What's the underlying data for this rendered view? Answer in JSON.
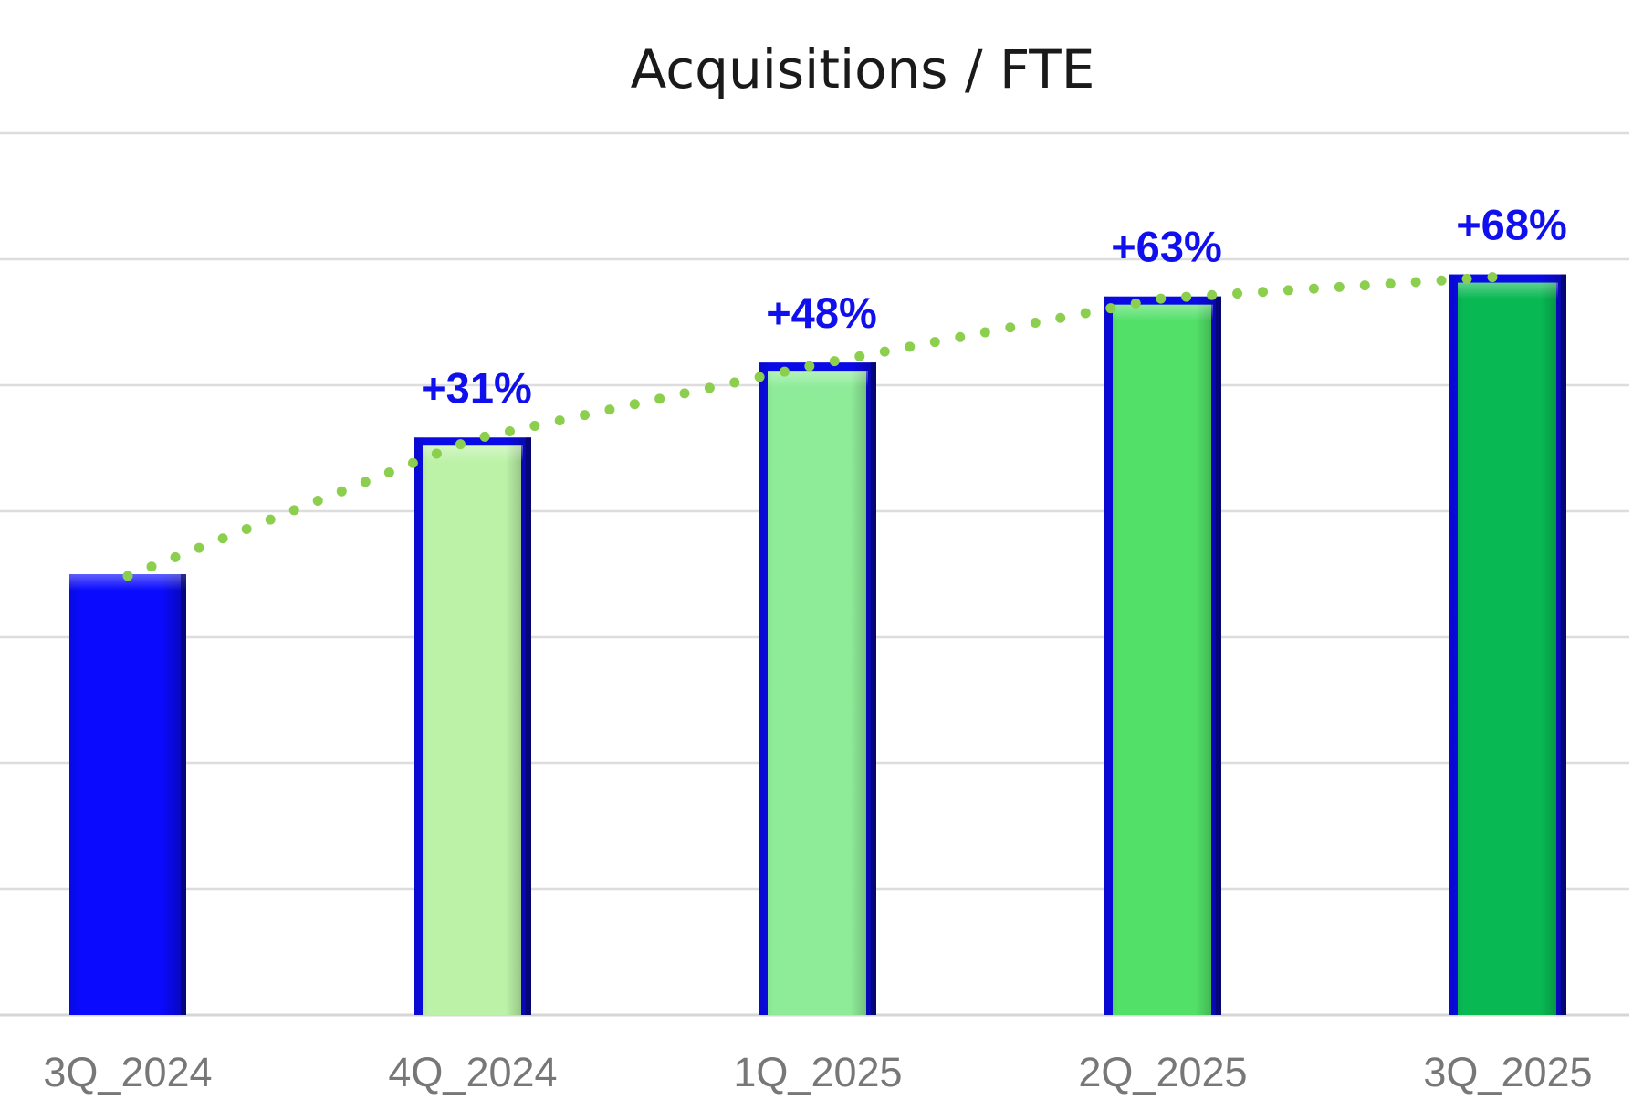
{
  "chart_data": {
    "type": "bar",
    "title": "Acquisitions / FTE",
    "xlabel": "",
    "ylabel": "",
    "categories": [
      "3Q_2024",
      "4Q_2024",
      "1Q_2025",
      "2Q_2025",
      "3Q_2025"
    ],
    "values": [
      100,
      131,
      148,
      163,
      168
    ],
    "value_labels": [
      "",
      "+31%",
      "+48%",
      "+63%",
      "+68%"
    ],
    "ylim": [
      0,
      200
    ],
    "grid": true,
    "trend_line": {
      "style": "dotted",
      "color": "#8ccf4e"
    },
    "colors": {
      "bar_fills": [
        "#0a0aff",
        "#bcf2a8",
        "#8eec98",
        "#52e068",
        "#08b852"
      ],
      "bar_border": "#0a0ae6",
      "label_color": "#1010ee"
    }
  }
}
